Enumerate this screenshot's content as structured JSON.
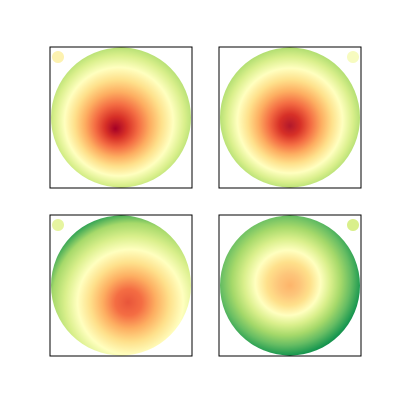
{
  "chart_data": [
    {
      "type": "topomap",
      "colors": [
        "#a50026",
        "#d73027",
        "#f46d43",
        "#fdae61",
        "#fee08b",
        "#ffffbf",
        "#d9ef8b",
        "#a6d96a",
        "#66bd63"
      ],
      "marker_color": "#fdf2b0",
      "marker_corner": "top-left"
    },
    {
      "type": "topomap",
      "colors": [
        "#b2182b",
        "#d73027",
        "#f46d43",
        "#fdae61",
        "#fee08b",
        "#ffffbf",
        "#d9ef8b",
        "#a6d96a",
        "#66bd63"
      ],
      "marker_color": "#f7fbc0",
      "marker_corner": "top-right"
    },
    {
      "type": "topomap",
      "colors": [
        "#e8553a",
        "#f46d43",
        "#fdae61",
        "#fee08b",
        "#ffffbf",
        "#d9ef8b",
        "#a6d96a",
        "#1a9850"
      ],
      "marker_color": "#e6f5a0",
      "marker_corner": "top-left"
    },
    {
      "type": "topomap",
      "colors": [
        "#fdb46a",
        "#fdc57a",
        "#fee08b",
        "#ffffbf",
        "#d9ef8b",
        "#a6d96a",
        "#66bd63",
        "#1a9850",
        "#006837"
      ],
      "marker_color": "#d9ef8b",
      "marker_corner": "top-right"
    }
  ]
}
